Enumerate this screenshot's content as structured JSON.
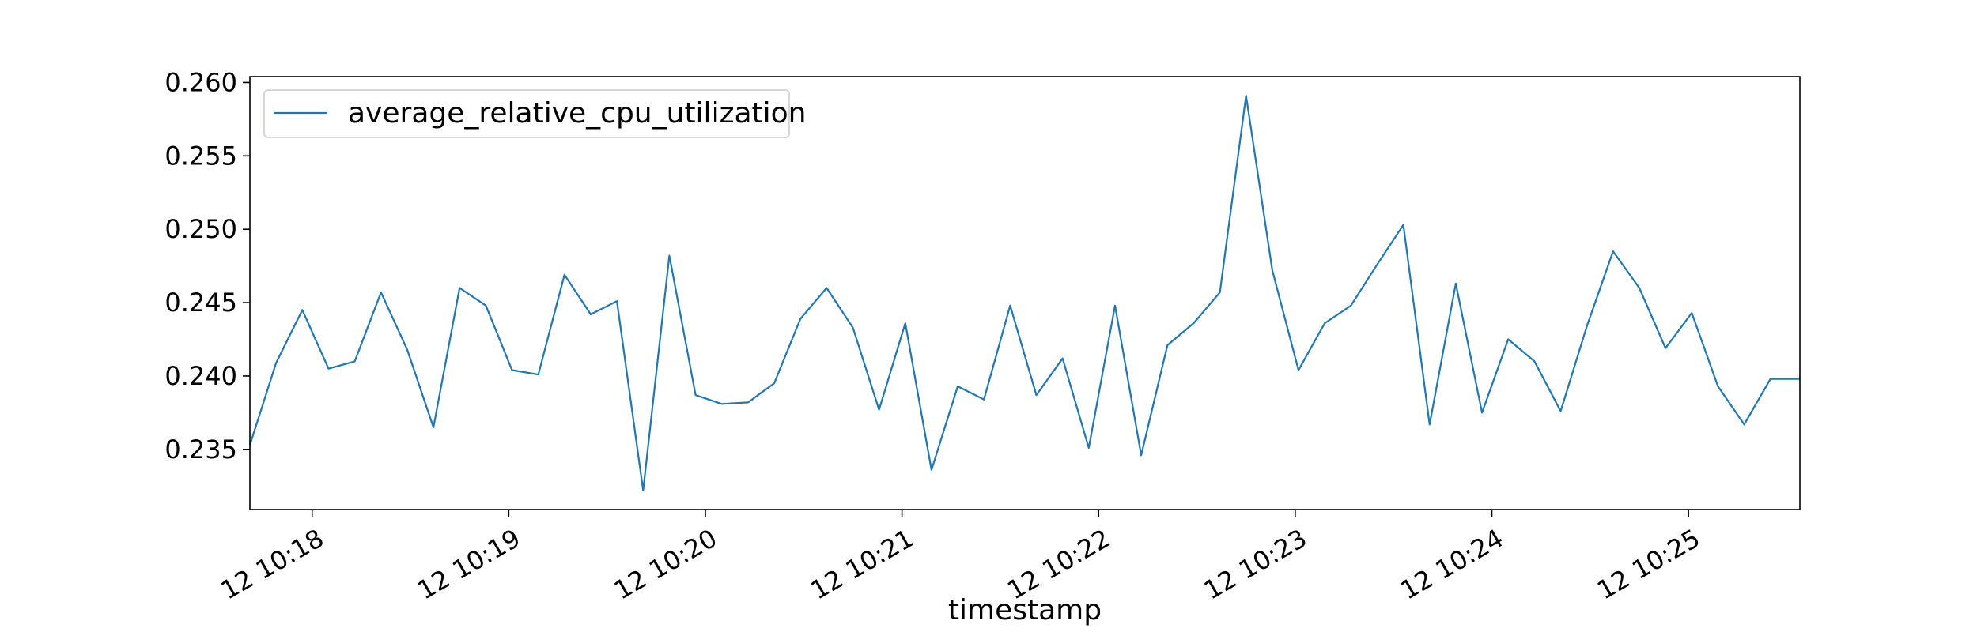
{
  "colors": {
    "series": "#1f77b4",
    "axes": "#000000",
    "legend_border": "#cccccc"
  },
  "chart_data": {
    "type": "line",
    "title": "",
    "xlabel": "timestamp",
    "ylabel": "",
    "grid": false,
    "legend_position": "upper-left",
    "x_tick_labels": [
      "12 10:18",
      "12 10:19",
      "12 10:20",
      "12 10:21",
      "12 10:22",
      "12 10:23",
      "12 10:24",
      "12 10:25"
    ],
    "y_tick_labels": [
      "0.235",
      "0.240",
      "0.245",
      "0.250",
      "0.255",
      "0.260"
    ],
    "y_ticks": [
      0.235,
      0.24,
      0.245,
      0.25,
      0.255,
      0.26
    ],
    "ylim": [
      0.2309,
      0.2604
    ],
    "x_time_range": [
      "10:17:41",
      "10:25:34"
    ],
    "x_tick_times": [
      "10:18:00",
      "10:19:00",
      "10:20:00",
      "10:21:00",
      "10:22:00",
      "10:23:00",
      "10:24:00",
      "10:25:00"
    ],
    "series": [
      {
        "name": "average_relative_cpu_utilization",
        "x": [
          "10:17:41",
          "10:17:49",
          "10:17:57",
          "10:18:05",
          "10:18:13",
          "10:18:21",
          "10:18:29",
          "10:18:37",
          "10:18:45",
          "10:18:53",
          "10:19:01",
          "10:19:09",
          "10:19:17",
          "10:19:25",
          "10:19:33",
          "10:19:41",
          "10:19:49",
          "10:19:57",
          "10:20:05",
          "10:20:13",
          "10:20:21",
          "10:20:29",
          "10:20:37",
          "10:20:45",
          "10:20:53",
          "10:21:01",
          "10:21:09",
          "10:21:17",
          "10:21:25",
          "10:21:33",
          "10:21:41",
          "10:21:49",
          "10:21:57",
          "10:22:05",
          "10:22:13",
          "10:22:21",
          "10:22:29",
          "10:22:37",
          "10:22:45",
          "10:22:53",
          "10:23:01",
          "10:23:09",
          "10:23:17",
          "10:23:25",
          "10:23:33",
          "10:23:41",
          "10:23:49",
          "10:23:57",
          "10:24:05",
          "10:24:13",
          "10:24:21",
          "10:24:29",
          "10:24:37",
          "10:24:45",
          "10:24:53",
          "10:25:01",
          "10:25:09",
          "10:25:17",
          "10:25:25",
          "10:25:34"
        ],
        "values": [
          0.2353,
          0.2409,
          0.2445,
          0.2405,
          0.241,
          0.2457,
          0.2418,
          0.2365,
          0.246,
          0.2448,
          0.2404,
          0.2401,
          0.2469,
          0.2442,
          0.2451,
          0.2322,
          0.2482,
          0.2387,
          0.2381,
          0.2382,
          0.2395,
          0.2439,
          0.246,
          0.2433,
          0.2377,
          0.2436,
          0.2336,
          0.2393,
          0.2384,
          0.2448,
          0.2387,
          0.2412,
          0.2351,
          0.2448,
          0.2346,
          0.2421,
          0.2436,
          0.2457,
          0.2591,
          0.2472,
          0.2404,
          0.2436,
          0.2448,
          0.2476,
          0.2503,
          0.2367,
          0.2463,
          0.2375,
          0.2425,
          0.241,
          0.2376,
          0.2434,
          0.2485,
          0.246,
          0.2419,
          0.2443,
          0.2393,
          0.2367,
          0.2398,
          0.2398
        ]
      }
    ]
  }
}
